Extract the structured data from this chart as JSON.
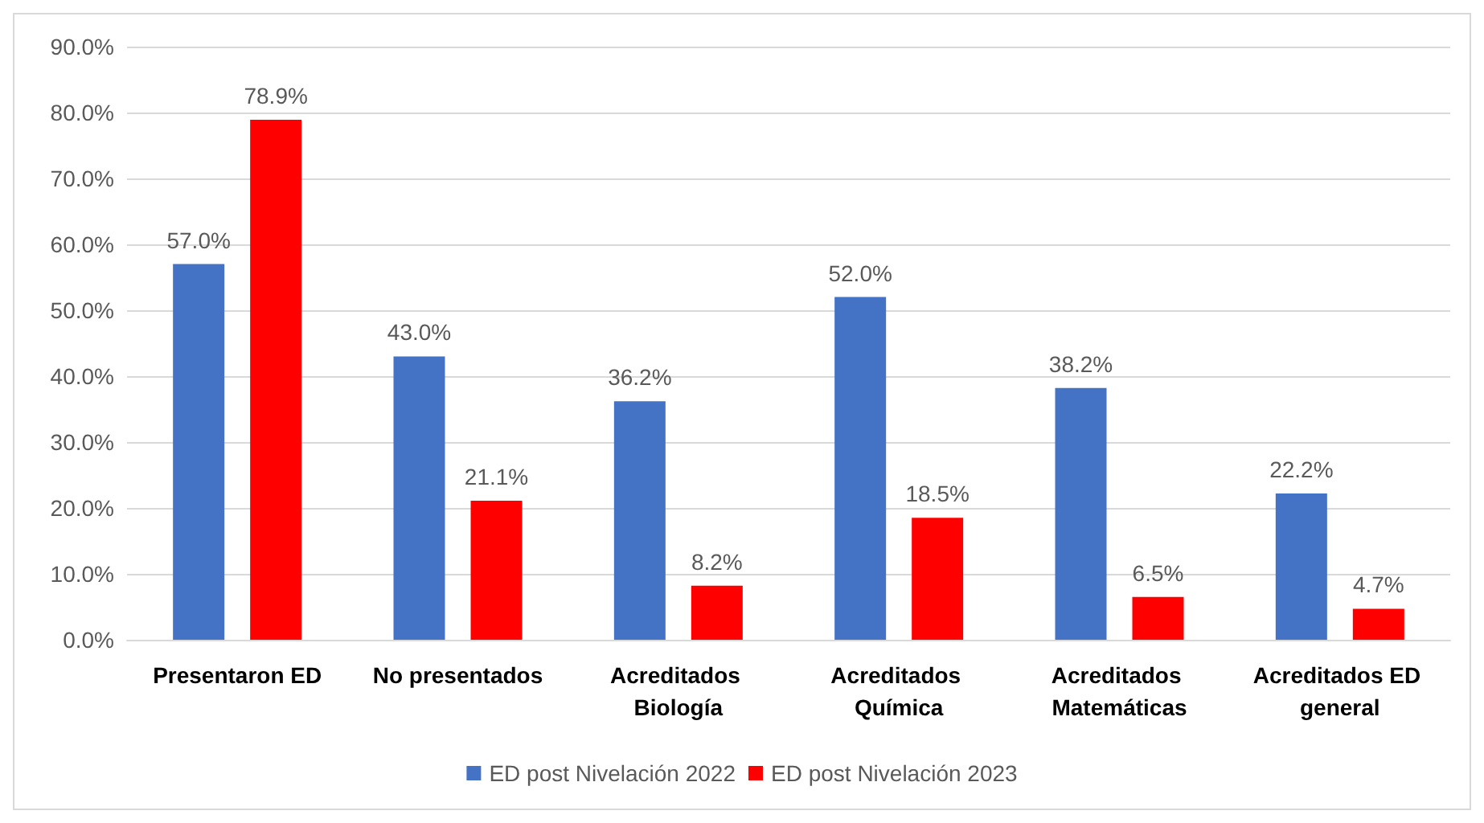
{
  "chart_data": {
    "type": "bar",
    "categories": [
      "Presentaron ED",
      "No presentados",
      "Acreditados Biología",
      "Acreditados Química",
      "Acreditados Matemáticas",
      "Acreditados ED general"
    ],
    "series": [
      {
        "name": "ED post Nivelación 2022",
        "color": "#4472c4",
        "values": [
          57.0,
          43.0,
          36.2,
          52.0,
          38.2,
          22.2
        ],
        "value_labels": [
          "57.0%",
          "43.0%",
          "36.2%",
          "52.0%",
          "38.2%",
          "22.2%"
        ]
      },
      {
        "name": "ED post Nivelación 2023",
        "color": "#ff0000",
        "values": [
          78.9,
          21.1,
          8.2,
          18.5,
          6.5,
          4.7
        ],
        "value_labels": [
          "78.9%",
          "21.1%",
          "8.2%",
          "18.5%",
          "6.5%",
          "4.7%"
        ]
      }
    ],
    "ylim": [
      0,
      90
    ],
    "yticks": [
      {
        "value": 0,
        "label": "0.0%"
      },
      {
        "value": 10,
        "label": "10.0%"
      },
      {
        "value": 20,
        "label": "20.0%"
      },
      {
        "value": 30,
        "label": "30.0%"
      },
      {
        "value": 40,
        "label": "40.0%"
      },
      {
        "value": 50,
        "label": "50.0%"
      },
      {
        "value": 60,
        "label": "60.0%"
      },
      {
        "value": 70,
        "label": "70.0%"
      },
      {
        "value": 80,
        "label": "80.0%"
      },
      {
        "value": 90,
        "label": "90.0%"
      }
    ],
    "grid": "y",
    "legend": "bottom"
  }
}
